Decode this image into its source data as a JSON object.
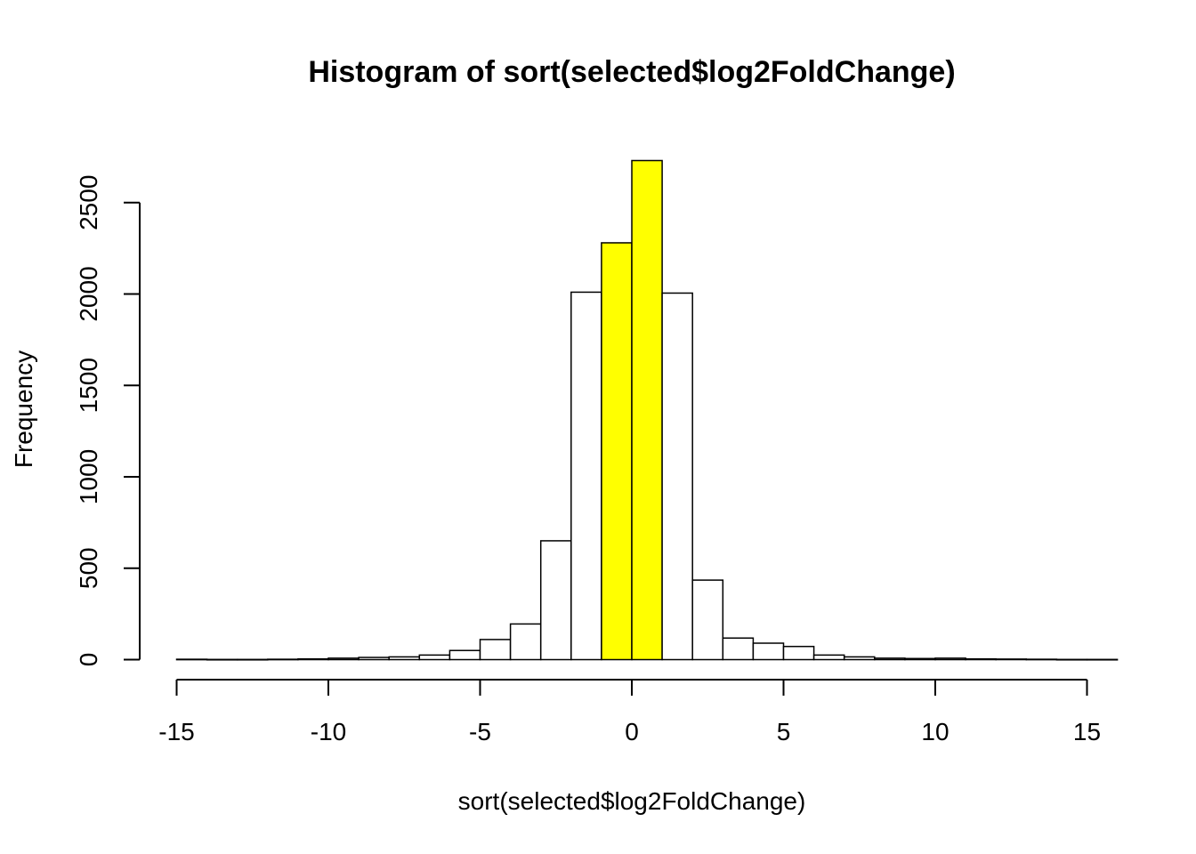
{
  "chart_data": {
    "type": "bar",
    "title": "Histogram of sort(selected$log2FoldChange)",
    "xlabel": "sort(selected$log2FoldChange)",
    "ylabel": "Frequency",
    "xlim": [
      -15,
      16
    ],
    "ylim": [
      0,
      2730
    ],
    "x_ticks": [
      -15,
      -10,
      -5,
      0,
      5,
      10,
      15
    ],
    "x_tick_labels": [
      "-15",
      "-10",
      "-5",
      "0",
      "5",
      "10",
      "15"
    ],
    "y_ticks": [
      0,
      500,
      1000,
      1500,
      2000,
      2500
    ],
    "y_tick_labels": [
      "0",
      "500",
      "1000",
      "1500",
      "2000",
      "2500"
    ],
    "bin_width": 1,
    "bins": [
      {
        "start": -15,
        "end": -14,
        "count": 2
      },
      {
        "start": -14,
        "end": -13,
        "count": 1
      },
      {
        "start": -13,
        "end": -12,
        "count": 1
      },
      {
        "start": -12,
        "end": -11,
        "count": 2
      },
      {
        "start": -11,
        "end": -10,
        "count": 4
      },
      {
        "start": -10,
        "end": -9,
        "count": 8
      },
      {
        "start": -9,
        "end": -8,
        "count": 12
      },
      {
        "start": -8,
        "end": -7,
        "count": 15
      },
      {
        "start": -7,
        "end": -6,
        "count": 25
      },
      {
        "start": -6,
        "end": -5,
        "count": 50
      },
      {
        "start": -5,
        "end": -4,
        "count": 110
      },
      {
        "start": -4,
        "end": -3,
        "count": 195
      },
      {
        "start": -3,
        "end": -2,
        "count": 650
      },
      {
        "start": -2,
        "end": -1,
        "count": 2010
      },
      {
        "start": -1,
        "end": 0,
        "count": 2280
      },
      {
        "start": 0,
        "end": 1,
        "count": 2730
      },
      {
        "start": 1,
        "end": 2,
        "count": 2005
      },
      {
        "start": 2,
        "end": 3,
        "count": 435
      },
      {
        "start": 3,
        "end": 4,
        "count": 118
      },
      {
        "start": 4,
        "end": 5,
        "count": 90
      },
      {
        "start": 5,
        "end": 6,
        "count": 72
      },
      {
        "start": 6,
        "end": 7,
        "count": 25
      },
      {
        "start": 7,
        "end": 8,
        "count": 15
      },
      {
        "start": 8,
        "end": 9,
        "count": 8
      },
      {
        "start": 9,
        "end": 10,
        "count": 6
      },
      {
        "start": 10,
        "end": 11,
        "count": 8
      },
      {
        "start": 11,
        "end": 12,
        "count": 4
      },
      {
        "start": 12,
        "end": 13,
        "count": 3
      },
      {
        "start": 13,
        "end": 14,
        "count": 2
      },
      {
        "start": 14,
        "end": 15,
        "count": 1
      },
      {
        "start": 15,
        "end": 16,
        "count": 1
      }
    ],
    "highlighted_bins": [
      -1,
      0
    ],
    "highlight_color": "#ffff00",
    "default_bar_color": "#ffffff",
    "grid": false
  }
}
